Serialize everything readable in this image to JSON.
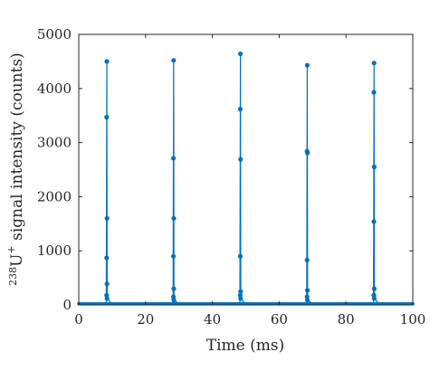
{
  "chart_data": {
    "type": "line",
    "title": "",
    "xlabel": "Time (ms)",
    "ylabel_parts": {
      "sup1": "238",
      "base": "U",
      "sup2": "+",
      "rest": " signal intensity (counts)"
    },
    "xlim": [
      0,
      100
    ],
    "ylim": [
      0,
      5000
    ],
    "xticks": [
      0,
      20,
      40,
      60,
      80,
      100
    ],
    "yticks": [
      0,
      1000,
      2000,
      3000,
      4000,
      5000
    ],
    "grid": false,
    "box": true,
    "series_color": "#0072BD",
    "series": [
      {
        "marker": "dot",
        "peaks": [
          {
            "x": 8.4,
            "values": [
              4500,
              3470,
              1600,
              870,
              390,
              180,
              120
            ]
          },
          {
            "x": 28.4,
            "values": [
              4520,
              2710,
              1600,
              900,
              300,
              150,
              90
            ]
          },
          {
            "x": 48.4,
            "values": [
              4640,
              3620,
              2690,
              900,
              250,
              180,
              120
            ]
          },
          {
            "x": 68.4,
            "values": [
              4430,
              2840,
              2810,
              830,
              270,
              150,
              90
            ]
          },
          {
            "x": 88.4,
            "values": [
              4470,
              3930,
              2550,
              1540,
              300,
              180,
              120
            ]
          }
        ],
        "baseline": 5
      }
    ]
  }
}
